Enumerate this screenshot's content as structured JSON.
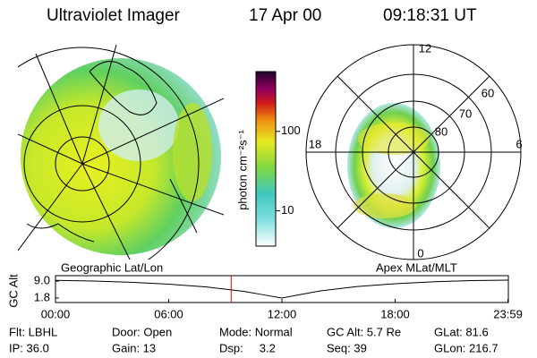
{
  "header": {
    "instrument": "Ultraviolet Imager",
    "date": "17 Apr 00",
    "time": "09:18:31 UT"
  },
  "geographic_panel": {
    "label": "Geographic Lat/Lon"
  },
  "colorbar": {
    "label": "photon cm⁻²s⁻¹",
    "scale": "log",
    "clim": [
      3.6,
      565
    ],
    "ticks": [
      10,
      100
    ]
  },
  "polar_panel": {
    "label": "Apex MLat/MLT",
    "mlt_labels": [
      "12",
      "18",
      "6",
      "0"
    ],
    "lat_labels": [
      "60",
      "70",
      "80"
    ]
  },
  "chart_data": {
    "type": "line",
    "ylabel": "GC Alt",
    "color": "#000000",
    "marker_color": "#dd0000",
    "marker_x": 9.31,
    "x": [
      0,
      2,
      4,
      6,
      8,
      10,
      11,
      12,
      13,
      14,
      16,
      18,
      20,
      22,
      24
    ],
    "values": [
      9.3,
      9.0,
      8.5,
      7.7,
      6.5,
      4.6,
      3.2,
      1.8,
      3.3,
      4.8,
      6.7,
      7.9,
      8.7,
      9.2,
      9.4
    ],
    "xlim": [
      0,
      24
    ],
    "xticks": [
      {
        "value": 0,
        "label": "00:00"
      },
      {
        "value": 6,
        "label": "06:00"
      },
      {
        "value": 12,
        "label": "12:00"
      },
      {
        "value": 18,
        "label": "18:00"
      },
      {
        "value": 23.98,
        "label": "23:59"
      }
    ],
    "ylim": [
      -0.1,
      11.3
    ],
    "yticks": [
      {
        "value": 1.8,
        "label": "1.8"
      },
      {
        "value": 9,
        "label": "9.0"
      }
    ]
  },
  "footer": {
    "rows": [
      [
        "Flt: LBHL",
        "Door: Open",
        "Mode: Normal",
        "GC Alt: 5.7 Re",
        "GLat: 81.6"
      ],
      [
        "IP: 36.0",
        "Gain: 13",
        "Dsp:     3.2",
        "Seq: 39",
        "GLon: 216.7"
      ]
    ]
  }
}
